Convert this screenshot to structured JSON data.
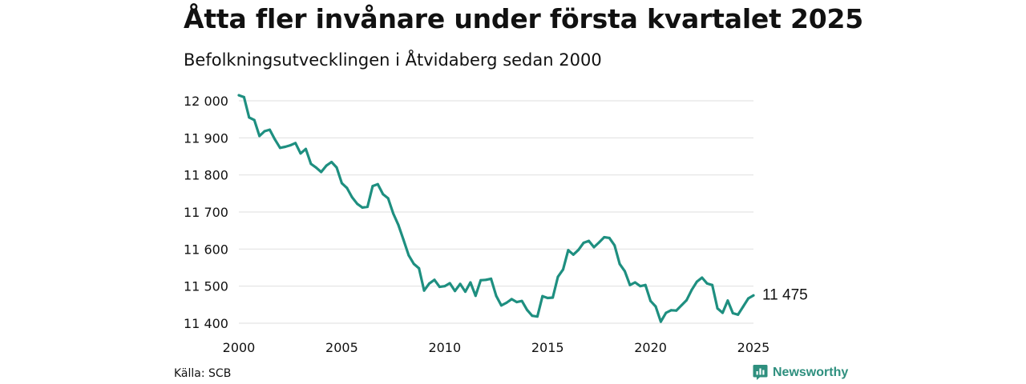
{
  "title": "Åtta fler invånare under första kvartalet 2025",
  "subtitle": "Befolkningsutvecklingen i Åtvidaberg sedan 2000",
  "source": "Källa: SCB",
  "brand": {
    "name": "Newsworthy",
    "icon": "newsworthy-logo-icon"
  },
  "colors": {
    "line": "#1e8f80",
    "grid": "#e3e3e3",
    "text": "#111111",
    "brand": "#2e8f7e"
  },
  "chart_data": {
    "type": "line",
    "xlim": [
      2000,
      2025
    ],
    "ylim": [
      11400,
      12000
    ],
    "x_ticks": [
      2000,
      2005,
      2010,
      2015,
      2020,
      2025
    ],
    "x_tick_labels": [
      "2000",
      "2005",
      "2010",
      "2015",
      "2020",
      "2025"
    ],
    "y_ticks": [
      11400,
      11500,
      11600,
      11700,
      11800,
      11900,
      12000
    ],
    "y_tick_labels": [
      "11 400",
      "11 500",
      "11 600",
      "11 700",
      "11 800",
      "11 900",
      "12 000"
    ],
    "grid": "horizontal",
    "end_label": "11 475",
    "series": [
      {
        "x": [
          2000.0,
          2000.25,
          2000.5,
          2000.75,
          2001.0,
          2001.25,
          2001.5,
          2001.75,
          2002.0,
          2002.25,
          2002.5,
          2002.75,
          2003.0,
          2003.25,
          2003.5,
          2003.75,
          2004.0,
          2004.25,
          2004.5,
          2004.75,
          2005.0,
          2005.25,
          2005.5,
          2005.75,
          2006.0,
          2006.25,
          2006.5,
          2006.75,
          2007.0,
          2007.25,
          2007.5,
          2007.75,
          2008.0,
          2008.25,
          2008.5,
          2008.75,
          2009.0,
          2009.25,
          2009.5,
          2009.75,
          2010.0,
          2010.25,
          2010.5,
          2010.75,
          2011.0,
          2011.25,
          2011.5,
          2011.75,
          2012.0,
          2012.25,
          2012.5,
          2012.75,
          2013.0,
          2013.25,
          2013.5,
          2013.75,
          2014.0,
          2014.25,
          2014.5,
          2014.75,
          2015.0,
          2015.25,
          2015.5,
          2015.75,
          2016.0,
          2016.25,
          2016.5,
          2016.75,
          2017.0,
          2017.25,
          2017.5,
          2017.75,
          2018.0,
          2018.25,
          2018.5,
          2018.75,
          2019.0,
          2019.25,
          2019.5,
          2019.75,
          2020.0,
          2020.25,
          2020.5,
          2020.75,
          2021.0,
          2021.25,
          2021.5,
          2021.75,
          2022.0,
          2022.25,
          2022.5,
          2022.75,
          2023.0,
          2023.25,
          2023.5,
          2023.75,
          2024.0,
          2024.25,
          2024.5,
          2024.75,
          2025.0
        ],
        "y": [
          12015,
          12010,
          11955,
          11948,
          11905,
          11918,
          11922,
          11896,
          11873,
          11876,
          11880,
          11886,
          11858,
          11870,
          11830,
          11820,
          11808,
          11825,
          11835,
          11820,
          11778,
          11765,
          11740,
          11722,
          11712,
          11714,
          11770,
          11775,
          11748,
          11737,
          11696,
          11665,
          11625,
          11583,
          11560,
          11548,
          11488,
          11507,
          11517,
          11498,
          11500,
          11508,
          11487,
          11506,
          11485,
          11510,
          11474,
          11516,
          11517,
          11520,
          11474,
          11448,
          11455,
          11465,
          11457,
          11460,
          11436,
          11420,
          11418,
          11473,
          11468,
          11469,
          11525,
          11545,
          11597,
          11585,
          11598,
          11617,
          11622,
          11605,
          11618,
          11632,
          11630,
          11610,
          11560,
          11540,
          11503,
          11510,
          11500,
          11503,
          11460,
          11445,
          11404,
          11428,
          11435,
          11434,
          11448,
          11462,
          11490,
          11512,
          11523,
          11507,
          11503,
          11440,
          11428,
          11461,
          11427,
          11423,
          11445,
          11467,
          11475
        ]
      }
    ]
  }
}
